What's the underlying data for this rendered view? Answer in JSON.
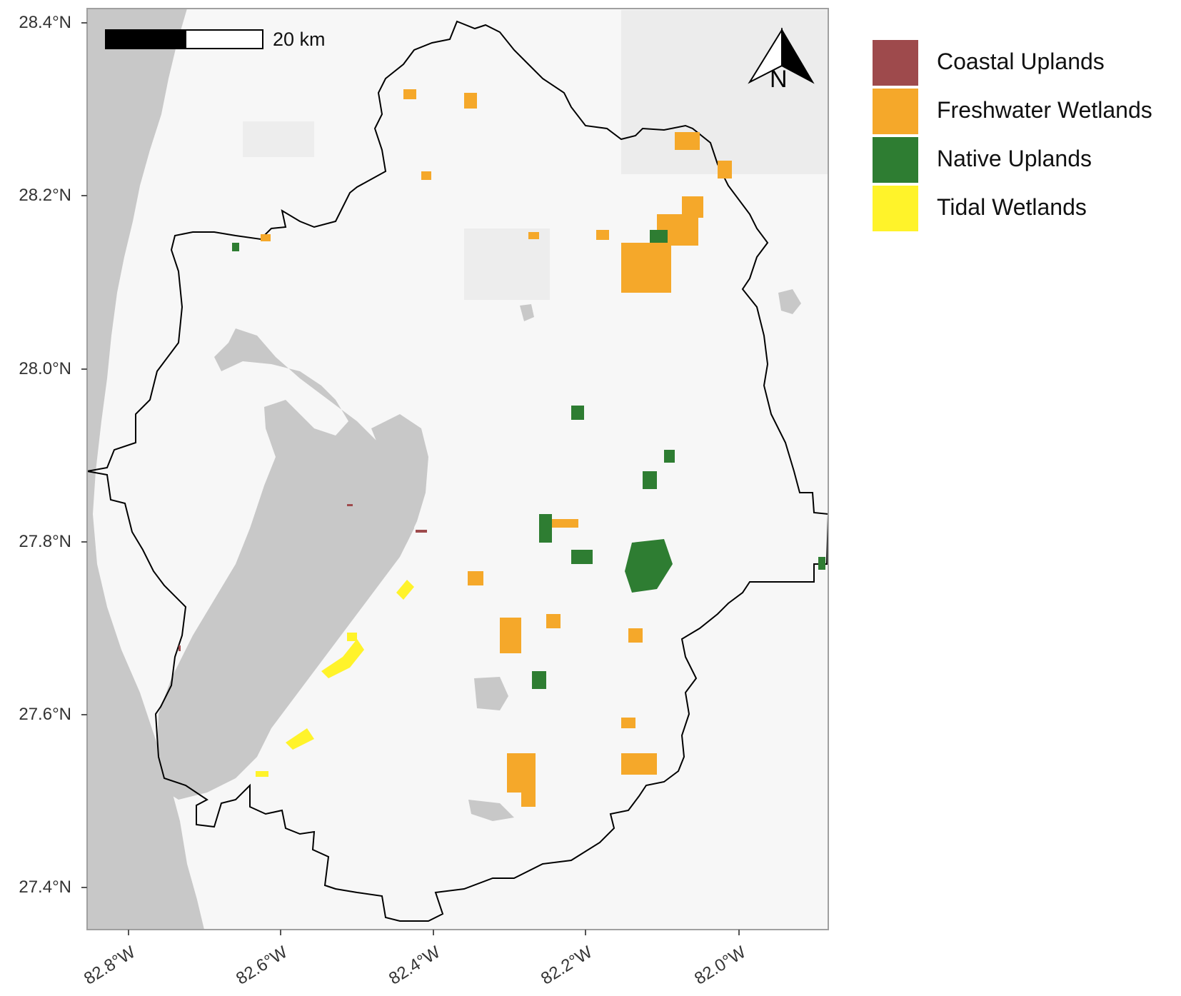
{
  "map": {
    "scale_bar": {
      "label": "20 km"
    },
    "north_arrow": {
      "label": "N"
    },
    "y_axis": {
      "ticks": [
        "28.4°N",
        "28.2°N",
        "28.0°N",
        "27.8°N",
        "27.6°N",
        "27.4°N"
      ]
    },
    "x_axis": {
      "ticks": [
        "82.8°W",
        "82.6°W",
        "82.4°W",
        "82.2°W",
        "82.0°W"
      ]
    },
    "legend": {
      "items": [
        {
          "label": "Coastal Uplands",
          "color": "#9E4A4C"
        },
        {
          "label": "Freshwater Wetlands",
          "color": "#F5A82A"
        },
        {
          "label": "Native Uplands",
          "color": "#2E7D32"
        },
        {
          "label": "Tidal Wetlands",
          "color": "#FFF32A"
        }
      ]
    },
    "colors": {
      "water": "#c8c8c8",
      "land": "#ffffff",
      "panel_border": "#a0a0a0",
      "boundary": "#000000"
    }
  }
}
